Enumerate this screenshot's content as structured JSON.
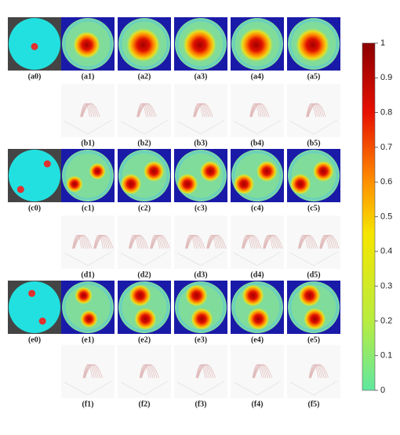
{
  "panels": {
    "rows": [
      {
        "labels": [
          "(a0)",
          "(a1)",
          "(a2)",
          "(a3)",
          "(a4)",
          "(a5)"
        ]
      },
      {
        "labels": [
          "(b1)",
          "(b2)",
          "(b3)",
          "(b4)",
          "(b5)"
        ]
      },
      {
        "labels": [
          "(c0)",
          "(c1)",
          "(c2)",
          "(c3)",
          "(c4)",
          "(c5)"
        ]
      },
      {
        "labels": [
          "(d1)",
          "(d2)",
          "(d3)",
          "(d4)",
          "(d5)"
        ]
      },
      {
        "labels": [
          "(e0)",
          "(e1)",
          "(e2)",
          "(e3)",
          "(e4)",
          "(e5)"
        ]
      },
      {
        "labels": [
          "(f1)",
          "(f2)",
          "(f3)",
          "(f4)",
          "(f5)"
        ]
      }
    ]
  },
  "colorbar": {
    "ticks": [
      0,
      0.1,
      0.2,
      0.3,
      0.4,
      0.5,
      0.6,
      0.7,
      0.8,
      0.9,
      1
    ]
  }
}
